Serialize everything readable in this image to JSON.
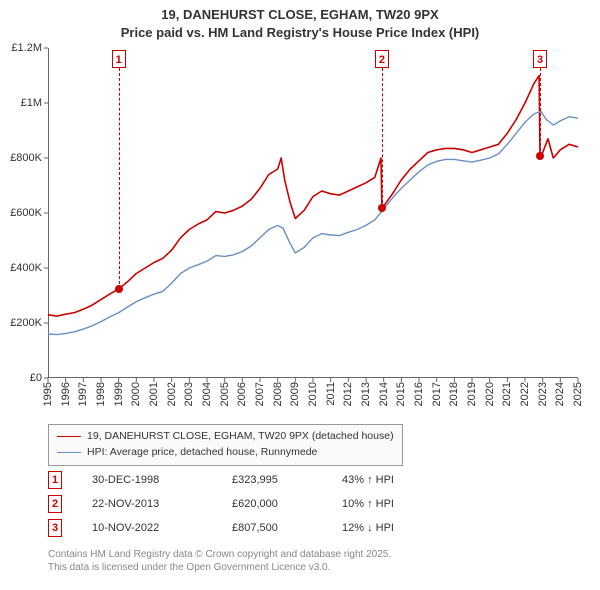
{
  "title_line1": "19, DANEHURST CLOSE, EGHAM, TW20 9PX",
  "title_line2": "Price paid vs. HM Land Registry's House Price Index (HPI)",
  "chart": {
    "type": "line",
    "x_range_years": [
      1995,
      2025
    ],
    "y_range": [
      0,
      1200000
    ],
    "y_ticks": [
      0,
      200000,
      400000,
      600000,
      800000,
      1000000,
      1200000
    ],
    "y_tick_labels": [
      "£0",
      "£200K",
      "£400K",
      "£600K",
      "£800K",
      "£1M",
      "£1.2M"
    ],
    "x_ticks_years": [
      1995,
      1996,
      1997,
      1998,
      1999,
      2000,
      2001,
      2002,
      2003,
      2004,
      2005,
      2006,
      2007,
      2008,
      2009,
      2010,
      2011,
      2012,
      2013,
      2014,
      2015,
      2016,
      2017,
      2018,
      2019,
      2020,
      2021,
      2022,
      2023,
      2024,
      2025
    ],
    "background_color": "#ffffff",
    "axis_color": "#666666",
    "series": [
      {
        "id": "subject",
        "label": "19, DANEHURST CLOSE, EGHAM, TW20 9PX (detached house)",
        "color": "#cc0000",
        "line_width": 1.6,
        "points": [
          [
            1995.0,
            230000
          ],
          [
            1995.5,
            225000
          ],
          [
            1996.0,
            232000
          ],
          [
            1996.5,
            238000
          ],
          [
            1997.0,
            250000
          ],
          [
            1997.5,
            265000
          ],
          [
            1998.0,
            285000
          ],
          [
            1998.5,
            305000
          ],
          [
            1999.0,
            323995
          ],
          [
            1999.5,
            350000
          ],
          [
            2000.0,
            380000
          ],
          [
            2000.5,
            400000
          ],
          [
            2001.0,
            420000
          ],
          [
            2001.5,
            435000
          ],
          [
            2002.0,
            465000
          ],
          [
            2002.5,
            510000
          ],
          [
            2003.0,
            540000
          ],
          [
            2003.5,
            560000
          ],
          [
            2004.0,
            575000
          ],
          [
            2004.5,
            605000
          ],
          [
            2005.0,
            600000
          ],
          [
            2005.5,
            610000
          ],
          [
            2006.0,
            625000
          ],
          [
            2006.5,
            650000
          ],
          [
            2007.0,
            690000
          ],
          [
            2007.5,
            740000
          ],
          [
            2008.0,
            760000
          ],
          [
            2008.2,
            800000
          ],
          [
            2008.4,
            720000
          ],
          [
            2008.7,
            640000
          ],
          [
            2009.0,
            580000
          ],
          [
            2009.5,
            610000
          ],
          [
            2010.0,
            660000
          ],
          [
            2010.5,
            680000
          ],
          [
            2011.0,
            670000
          ],
          [
            2011.5,
            665000
          ],
          [
            2012.0,
            680000
          ],
          [
            2012.5,
            695000
          ],
          [
            2013.0,
            710000
          ],
          [
            2013.5,
            730000
          ],
          [
            2013.85,
            800000
          ],
          [
            2013.9,
            620000
          ],
          [
            2014.0,
            625000
          ],
          [
            2014.5,
            670000
          ],
          [
            2015.0,
            720000
          ],
          [
            2015.5,
            760000
          ],
          [
            2016.0,
            790000
          ],
          [
            2016.5,
            820000
          ],
          [
            2017.0,
            830000
          ],
          [
            2017.5,
            835000
          ],
          [
            2018.0,
            835000
          ],
          [
            2018.5,
            830000
          ],
          [
            2019.0,
            820000
          ],
          [
            2019.5,
            830000
          ],
          [
            2020.0,
            840000
          ],
          [
            2020.5,
            850000
          ],
          [
            2021.0,
            890000
          ],
          [
            2021.5,
            940000
          ],
          [
            2022.0,
            1000000
          ],
          [
            2022.5,
            1070000
          ],
          [
            2022.8,
            1100000
          ],
          [
            2022.85,
            807500
          ],
          [
            2023.0,
            820000
          ],
          [
            2023.3,
            870000
          ],
          [
            2023.6,
            800000
          ],
          [
            2024.0,
            830000
          ],
          [
            2024.5,
            850000
          ],
          [
            2025.0,
            840000
          ]
        ]
      },
      {
        "id": "hpi",
        "label": "HPI: Average price, detached house, Runnymede",
        "color": "#6a8fc4",
        "line_width": 1.4,
        "points": [
          [
            1995.0,
            160000
          ],
          [
            1995.5,
            158000
          ],
          [
            1996.0,
            162000
          ],
          [
            1996.5,
            168000
          ],
          [
            1997.0,
            178000
          ],
          [
            1997.5,
            190000
          ],
          [
            1998.0,
            205000
          ],
          [
            1998.5,
            222000
          ],
          [
            1999.0,
            238000
          ],
          [
            1999.5,
            258000
          ],
          [
            2000.0,
            278000
          ],
          [
            2000.5,
            292000
          ],
          [
            2001.0,
            305000
          ],
          [
            2001.5,
            315000
          ],
          [
            2002.0,
            345000
          ],
          [
            2002.5,
            380000
          ],
          [
            2003.0,
            400000
          ],
          [
            2003.5,
            412000
          ],
          [
            2004.0,
            425000
          ],
          [
            2004.5,
            445000
          ],
          [
            2005.0,
            442000
          ],
          [
            2005.5,
            448000
          ],
          [
            2006.0,
            460000
          ],
          [
            2006.5,
            480000
          ],
          [
            2007.0,
            510000
          ],
          [
            2007.5,
            540000
          ],
          [
            2008.0,
            555000
          ],
          [
            2008.3,
            545000
          ],
          [
            2008.7,
            490000
          ],
          [
            2009.0,
            455000
          ],
          [
            2009.5,
            475000
          ],
          [
            2010.0,
            510000
          ],
          [
            2010.5,
            525000
          ],
          [
            2011.0,
            520000
          ],
          [
            2011.5,
            518000
          ],
          [
            2012.0,
            530000
          ],
          [
            2012.5,
            540000
          ],
          [
            2013.0,
            555000
          ],
          [
            2013.5,
            575000
          ],
          [
            2014.0,
            615000
          ],
          [
            2014.5,
            655000
          ],
          [
            2015.0,
            690000
          ],
          [
            2015.5,
            720000
          ],
          [
            2016.0,
            750000
          ],
          [
            2016.5,
            775000
          ],
          [
            2017.0,
            788000
          ],
          [
            2017.5,
            795000
          ],
          [
            2018.0,
            795000
          ],
          [
            2018.5,
            790000
          ],
          [
            2019.0,
            785000
          ],
          [
            2019.5,
            792000
          ],
          [
            2020.0,
            800000
          ],
          [
            2020.5,
            815000
          ],
          [
            2021.0,
            850000
          ],
          [
            2021.5,
            890000
          ],
          [
            2022.0,
            930000
          ],
          [
            2022.5,
            960000
          ],
          [
            2022.9,
            970000
          ],
          [
            2023.2,
            940000
          ],
          [
            2023.6,
            920000
          ],
          [
            2024.0,
            935000
          ],
          [
            2024.5,
            950000
          ],
          [
            2025.0,
            945000
          ]
        ]
      }
    ],
    "markers": [
      {
        "n": "1",
        "year": 1999.0,
        "value": 323995
      },
      {
        "n": "2",
        "year": 2013.9,
        "value": 620000
      },
      {
        "n": "3",
        "year": 2022.85,
        "value": 807500
      }
    ]
  },
  "legend": {
    "items": [
      {
        "color": "#cc0000",
        "width": 1.6,
        "label": "19, DANEHURST CLOSE, EGHAM, TW20 9PX (detached house)"
      },
      {
        "color": "#6a8fc4",
        "width": 1.4,
        "label": "HPI: Average price, detached house, Runnymede"
      }
    ]
  },
  "sales": [
    {
      "n": "1",
      "date": "30-DEC-1998",
      "price": "£323,995",
      "hpi": "43% ↑ HPI"
    },
    {
      "n": "2",
      "date": "22-NOV-2013",
      "price": "£620,000",
      "hpi": "10% ↑ HPI"
    },
    {
      "n": "3",
      "date": "10-NOV-2022",
      "price": "£807,500",
      "hpi": "12% ↓ HPI"
    }
  ],
  "attribution_line1": "Contains HM Land Registry data © Crown copyright and database right 2025.",
  "attribution_line2": "This data is licensed under the Open Government Licence v3.0."
}
